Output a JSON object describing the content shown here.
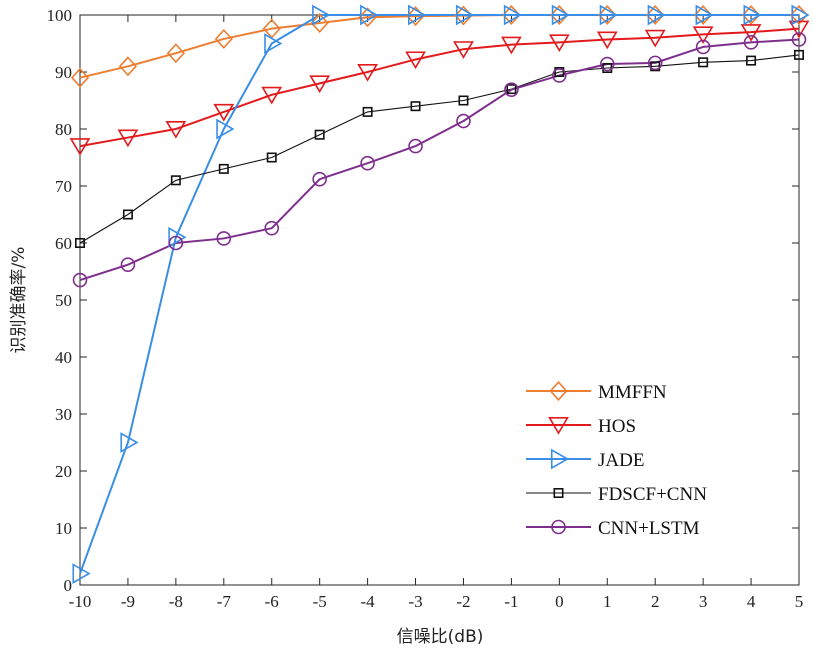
{
  "chart_data": {
    "type": "line",
    "title": "",
    "xlabel": "信噪比(dB)",
    "ylabel": "识别准确率/%",
    "x": [
      -10,
      -9,
      -8,
      -7,
      -6,
      -5,
      -4,
      -3,
      -2,
      -1,
      0,
      1,
      2,
      3,
      4,
      5
    ],
    "xlim": [
      -10,
      5
    ],
    "ylim": [
      0,
      100
    ],
    "xticks": [
      "-10",
      "-9",
      "-8",
      "-7",
      "-6",
      "-5",
      "-4",
      "-3",
      "-2",
      "-1",
      "0",
      "1",
      "2",
      "3",
      "4",
      "5"
    ],
    "yticks": [
      "0",
      "10",
      "20",
      "30",
      "40",
      "50",
      "60",
      "70",
      "80",
      "90",
      "100"
    ],
    "grid": false,
    "legend_position": "bottom-right",
    "series": [
      {
        "name": "MMFFN",
        "color": "#ED7D31",
        "marker": "diamond",
        "values": [
          89,
          91,
          93.3,
          95.8,
          97.6,
          98.6,
          99.6,
          99.8,
          99.9,
          100,
          100,
          100,
          100,
          100,
          100,
          100
        ]
      },
      {
        "name": "HOS",
        "color": "#E31A1C",
        "marker": "triangle-down",
        "values": [
          77,
          78.5,
          80,
          83,
          86,
          88,
          90,
          92.2,
          94,
          94.8,
          95.2,
          95.7,
          96,
          96.6,
          97,
          97.6
        ]
      },
      {
        "name": "JADE",
        "color": "#3A8EE6",
        "marker": "triangle-right",
        "values": [
          2,
          25,
          61,
          80,
          95,
          100,
          100,
          100,
          100,
          100,
          100,
          100,
          100,
          100,
          100,
          100
        ]
      },
      {
        "name": "FDSCF+CNN",
        "color": "#111111",
        "marker": "square",
        "values": [
          60,
          65,
          71,
          73,
          75,
          79,
          83,
          84,
          85,
          87,
          90,
          90.7,
          91,
          91.7,
          92,
          93
        ]
      },
      {
        "name": "CNN+LSTM",
        "color": "#7E2F8E",
        "marker": "circle",
        "values": [
          53.5,
          56.2,
          60,
          60.8,
          62.6,
          71.2,
          74,
          77,
          81.4,
          86.9,
          89.4,
          91.4,
          91.6,
          94.4,
          95.2,
          95.7
        ]
      }
    ]
  }
}
